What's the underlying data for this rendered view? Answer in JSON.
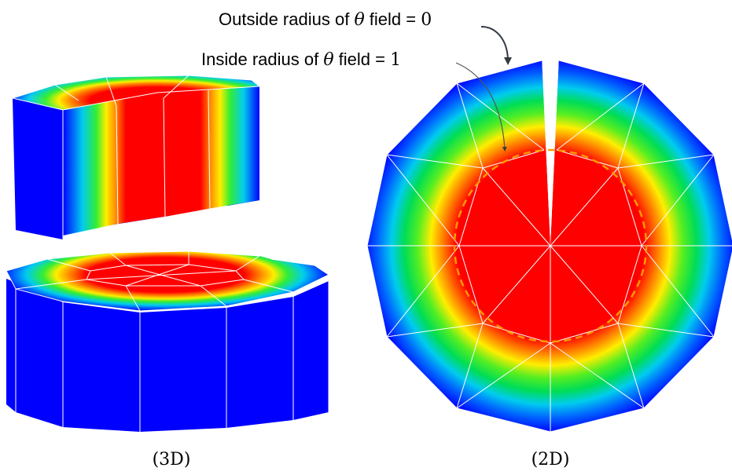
{
  "annotations": {
    "outside": {
      "prefix": "Outside radius of ",
      "symbol": "θ",
      "suffix": " field = ",
      "value": "0"
    },
    "inside": {
      "prefix": "Inside radius of ",
      "symbol": "θ",
      "suffix": " field = ",
      "value": "1"
    }
  },
  "captions": {
    "left": "(3D)",
    "right": "(2D)"
  },
  "colors": {
    "outer": "#0000ff",
    "inner": "#ff0000",
    "mesh": "#ffffff",
    "dashed_circle": "#ff9900",
    "arrow": "#333b44"
  },
  "field": {
    "outer_value": 0,
    "inner_value": 1,
    "segments": 12
  }
}
